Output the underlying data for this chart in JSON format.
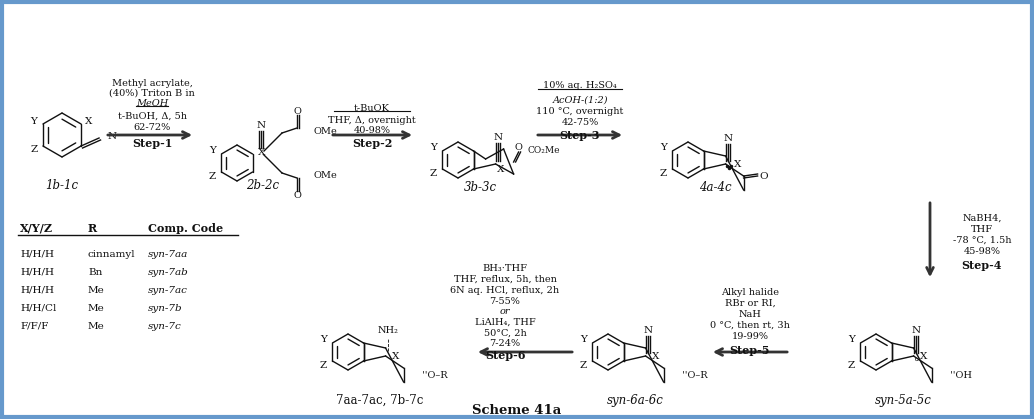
{
  "title": "Scheme 41a",
  "border_color": "#6699CC",
  "background_color": "#FFFFFF",
  "fig_width": 10.34,
  "fig_height": 4.19,
  "dpi": 100,
  "border_linewidth": 3.0,
  "content": {
    "top_compounds": [
      "1b-1c",
      "2b-2c",
      "3b-3c",
      "4a-4c"
    ],
    "bot_compounds": [
      "7aa-7ac, 7b-7c",
      "syn-6a-6c",
      "syn-5a-5c"
    ],
    "step1_reagents": "Methyl acrylate,\n(40%) Triton B in\nMeOH\nt-BuOH, Δ, 5h\n62-72%",
    "step1_label": "Step-1",
    "step2_reagents": "t-BuOK\nTHF, Δ, overnight\n40-98%",
    "step2_label": "Step-2",
    "step3_reagents": "10% aq. H₂SO₄\nAcOH-(1:2)\n110 °C, overnight\n42-75%",
    "step3_label": "Step-3",
    "step4_reagents": "NaBH4,\nTHF\n-78 °C, 1.5h\n45-98%",
    "step4_label": "Step-4",
    "step5_reagents": "Alkyl halide\nRBr or RI,\nNaH\n0 °C, then rt, 3h\n19-99%",
    "step5_label": "Step-5",
    "step6_reagents_a": "BH₃·THF\nTHF, reflux, 5h, then\n6N aq. HCl, reflux, 2h\n7-55%\nor",
    "step6_reagents_b": "LiAlH₄, THF\n50°C, 2h\n7-24%",
    "step6_label": "Step-6",
    "table_headers": [
      "X/Y/Z",
      "R",
      "Comp. Code"
    ],
    "table_rows": [
      [
        "H/H/H",
        "cinnamyl",
        "syn-7aa"
      ],
      [
        "H/H/H",
        "Bn",
        "syn-7ab"
      ],
      [
        "H/H/H",
        "Me",
        "syn-7ac"
      ],
      [
        "H/H/Cl",
        "Me",
        "syn-7b"
      ],
      [
        "F/F/F",
        "Me",
        "syn-7c"
      ]
    ]
  }
}
